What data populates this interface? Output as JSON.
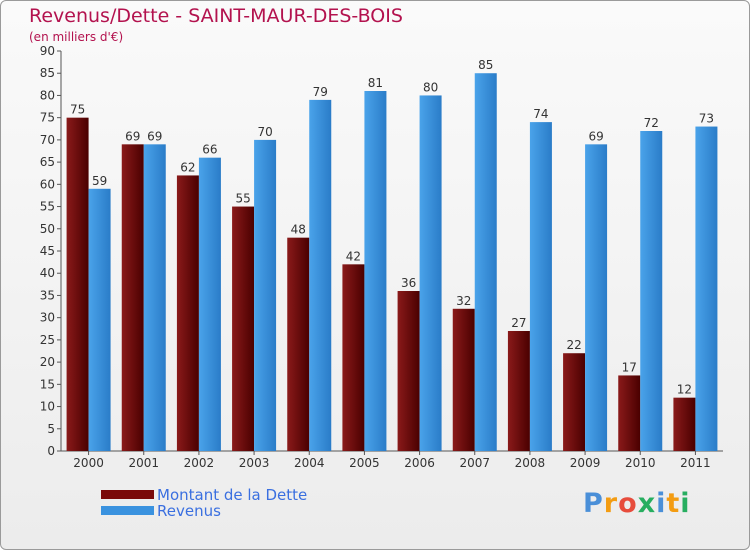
{
  "title": "Revenus/Dette - SAINT-MAUR-DES-BOIS",
  "subtitle": "(en milliers d'€)",
  "logo": {
    "text": "Proxiti",
    "letters": [
      {
        "ch": "P",
        "color": "#4a8fd8"
      },
      {
        "ch": "r",
        "color": "#f39c12"
      },
      {
        "ch": "o",
        "color": "#e74c3c"
      },
      {
        "ch": "x",
        "color": "#27ae60"
      },
      {
        "ch": "i",
        "color": "#4a8fd8"
      },
      {
        "ch": "t",
        "color": "#f39c12"
      },
      {
        "ch": "i",
        "color": "#27ae60"
      }
    ]
  },
  "legend": [
    {
      "label": "Montant de la Dette",
      "color": "#7a0a0a"
    },
    {
      "label": "Revenus",
      "color": "#3a92df"
    }
  ],
  "chart_data": {
    "type": "bar",
    "title": "Revenus/Dette - SAINT-MAUR-DES-BOIS",
    "subtitle": "(en milliers d'€)",
    "categories": [
      "2000",
      "2001",
      "2002",
      "2003",
      "2004",
      "2005",
      "2006",
      "2007",
      "2008",
      "2009",
      "2010",
      "2011"
    ],
    "series": [
      {
        "name": "Montant de la Dette",
        "color": "#7a0a0a",
        "values": [
          75,
          69,
          62,
          55,
          48,
          42,
          36,
          32,
          27,
          22,
          17,
          12
        ]
      },
      {
        "name": "Revenus",
        "color": "#3a92df",
        "values": [
          59,
          69,
          66,
          70,
          79,
          81,
          80,
          85,
          74,
          69,
          72,
          73
        ]
      }
    ],
    "ylim": [
      0,
      90
    ],
    "yticks": [
      0,
      5,
      10,
      15,
      20,
      25,
      30,
      35,
      40,
      45,
      50,
      55,
      60,
      65,
      70,
      75,
      80,
      85,
      90
    ],
    "grid": false,
    "legend_position": "bottom-left"
  }
}
